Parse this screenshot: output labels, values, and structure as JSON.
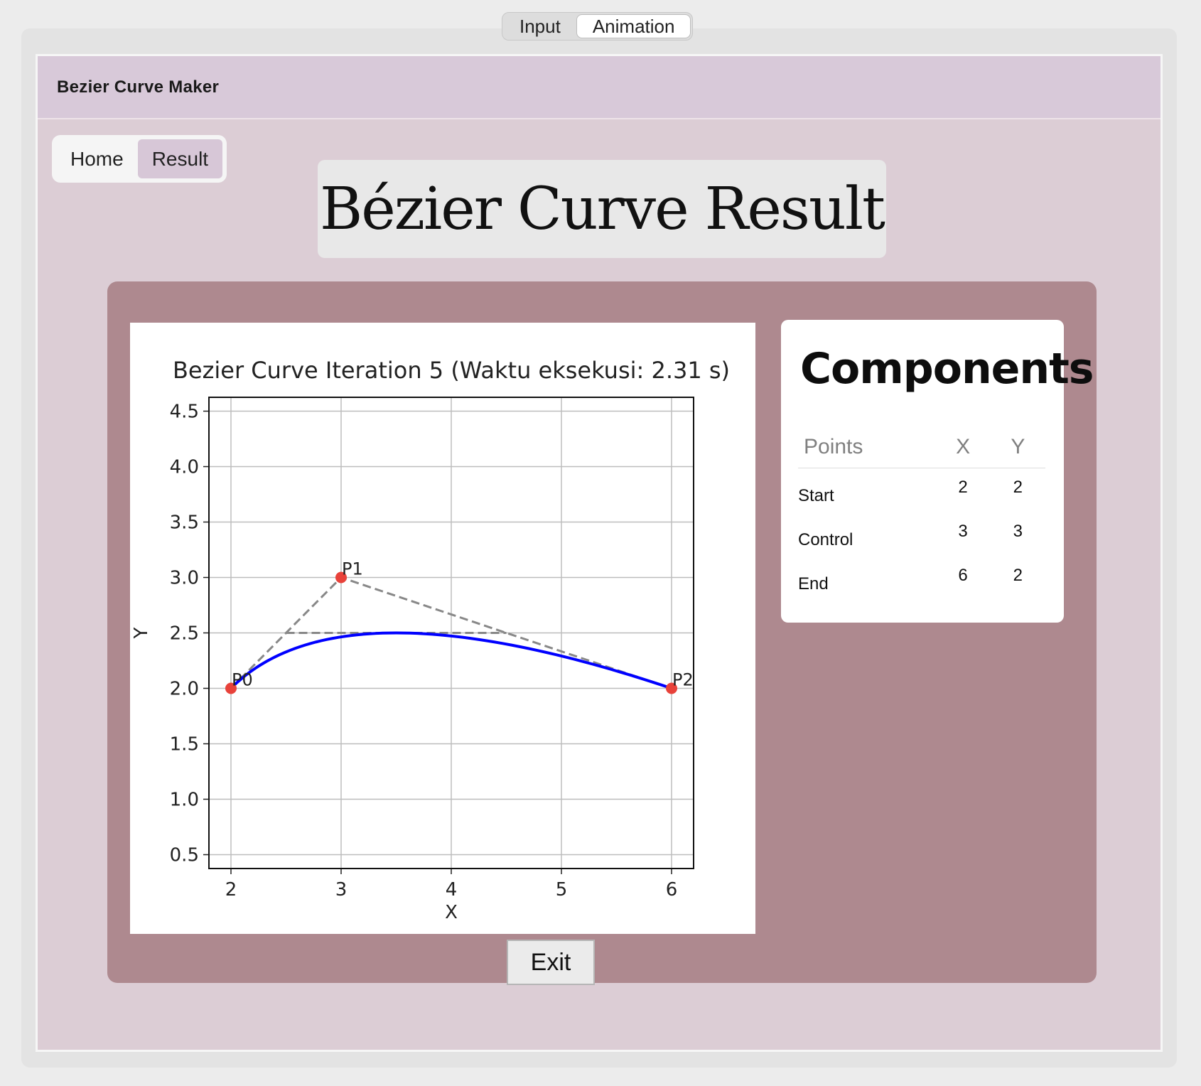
{
  "tabs": [
    "Input",
    "Animation"
  ],
  "app": {
    "title": "Bezier Curve Maker"
  },
  "nav": [
    "Home",
    "Result"
  ],
  "hero_title": "Bézier Curve Result",
  "components": {
    "title": "Components",
    "headers": [
      "Points",
      "X",
      "Y"
    ],
    "rows": [
      {
        "label": "Start",
        "x": "2",
        "y": "2"
      },
      {
        "label": "Control",
        "x": "3",
        "y": "3"
      },
      {
        "label": "End",
        "x": "6",
        "y": "2"
      }
    ]
  },
  "exit_label": "Exit",
  "chart_data": {
    "type": "line",
    "title": "Bezier Curve Iteration 5 (Waktu eksekusi: 2.31 s)",
    "xlabel": "X",
    "ylabel": "Y",
    "xlim": [
      1.8,
      6.2
    ],
    "ylim": [
      0.375,
      4.625
    ],
    "x_ticks": [
      "2",
      "3",
      "4",
      "5",
      "6"
    ],
    "y_ticks": [
      "0.5",
      "1.0",
      "1.5",
      "2.0",
      "2.5",
      "3.0",
      "3.5",
      "4.0",
      "4.5"
    ],
    "grid": true,
    "control_points": [
      {
        "label": "P0",
        "x": 2,
        "y": 2
      },
      {
        "label": "P1",
        "x": 3,
        "y": 3
      },
      {
        "label": "P2",
        "x": 6,
        "y": 2
      }
    ],
    "series": [
      {
        "values": [
          [
            2,
            2
          ],
          [
            3,
            3
          ],
          [
            6,
            2
          ]
        ],
        "style": "dashed",
        "color": "#888888"
      },
      {
        "values": [
          [
            2.5,
            2.5
          ],
          [
            4.5,
            2.5
          ]
        ],
        "style": "dashed",
        "color": "#888888"
      },
      {
        "values": "quadratic bezier through control points",
        "color": "#0000ff"
      }
    ],
    "point_color": "#e8423a"
  }
}
